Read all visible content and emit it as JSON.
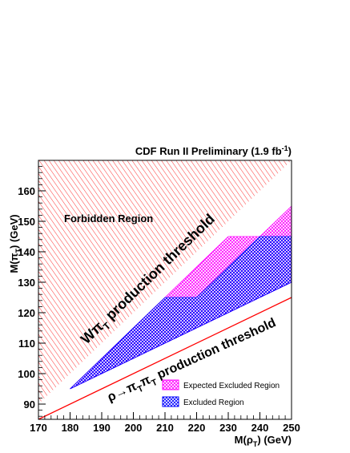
{
  "chart_data": {
    "type": "area",
    "title": "CDF Run II Preliminary (1.9 fb⁻¹)",
    "xlabel": "M(ρT) (GeV)",
    "ylabel": "M(πT) (GeV)",
    "xlim": [
      170,
      250
    ],
    "ylim": [
      85,
      170
    ],
    "x_ticks": [
      170,
      180,
      190,
      200,
      210,
      220,
      230,
      240,
      250
    ],
    "y_ticks": [
      90,
      100,
      110,
      120,
      130,
      140,
      150,
      160
    ],
    "regions": [
      {
        "name": "Forbidden Region",
        "points": [
          [
            170,
            90
          ],
          [
            170,
            170
          ],
          [
            250,
            170
          ]
        ]
      },
      {
        "name": "Expected Excluded Region",
        "points": [
          [
            180,
            95
          ],
          [
            210,
            125
          ],
          [
            230,
            145
          ],
          [
            240,
            145
          ],
          [
            250,
            155
          ],
          [
            250,
            130
          ],
          [
            240,
            125
          ],
          [
            230,
            120
          ],
          [
            220,
            115
          ],
          [
            210,
            110
          ],
          [
            200,
            105
          ],
          [
            190,
            100
          ]
        ]
      },
      {
        "name": "Excluded Region",
        "points": [
          [
            180,
            95
          ],
          [
            210,
            125
          ],
          [
            220,
            125
          ],
          [
            230,
            135
          ],
          [
            240,
            145
          ],
          [
            250,
            145
          ],
          [
            250,
            130
          ],
          [
            240,
            125
          ],
          [
            230,
            120
          ],
          [
            220,
            115
          ],
          [
            210,
            110
          ],
          [
            200,
            105
          ],
          [
            190,
            100
          ]
        ]
      }
    ],
    "lines": [
      {
        "name": "ρ→πTπT production threshold",
        "points": [
          [
            170,
            85
          ],
          [
            250,
            125
          ]
        ]
      }
    ],
    "annotations": {
      "forbidden": "Forbidden Region",
      "w_threshold_main": "Wπ",
      "w_threshold_sub": "T",
      "w_threshold_rest": " production threshold",
      "rho_threshold_lead": "ρ→π",
      "rho_sub1": "T",
      "rho_mid": "π",
      "rho_sub2": "T",
      "rho_rest": " production threshold"
    },
    "legend": {
      "placement": "bottom-right",
      "entries": [
        {
          "label": "Expected Excluded Region",
          "color": "#ff00ff"
        },
        {
          "label": "Excluded Region",
          "color": "#0000ff"
        }
      ]
    },
    "colors": {
      "forbidden": "#ff0000",
      "expected": "#ff00ff",
      "excluded": "#0000ff",
      "rho_line": "#ff0000"
    }
  }
}
